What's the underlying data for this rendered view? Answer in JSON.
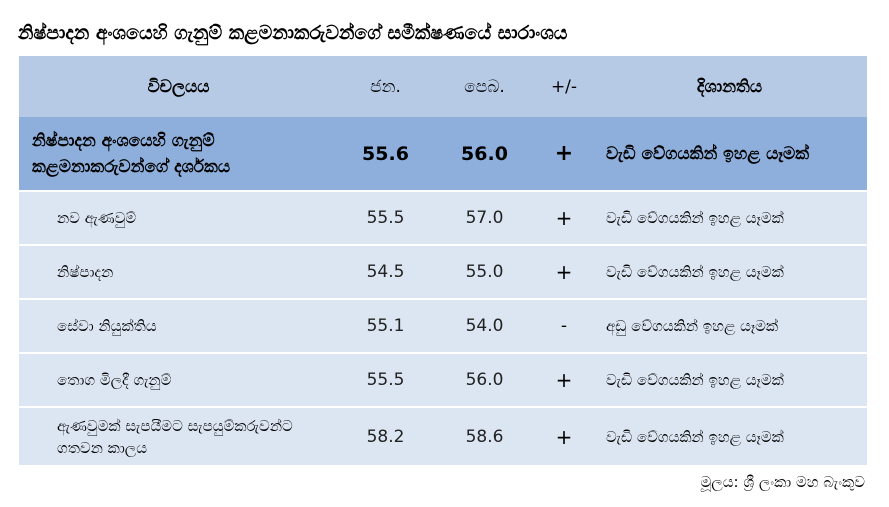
{
  "title": "නිෂ්පාදන අංශයෙහි ගැනුම් කළමනාකරුවන්ගේ සමීක්ෂණයේ සාරාංශය",
  "table": {
    "headers": {
      "category": "විචලයය",
      "jan": "ජන.",
      "feb": "පෙබ.",
      "change": "+/-",
      "direction": "දිශානතිය"
    },
    "summary_row": {
      "category": "නිෂ්පාදන අංශයෙහි ගැනුම් කළමනාකරුවන්ගේ දර්ශකය",
      "jan": "55.6",
      "feb": "56.0",
      "change": "+",
      "direction": "වැඩි වේගයකින් ඉහළ යෑමක්"
    },
    "rows": [
      {
        "category": "නව ඇණවුම්",
        "jan": "55.5",
        "feb": "57.0",
        "change": "+",
        "direction": "වැඩි වේගයකින් ඉහළ යෑමක්"
      },
      {
        "category": "නිෂ්පාදන",
        "jan": "54.5",
        "feb": "55.0",
        "change": "+",
        "direction": "වැඩි වේගයකින් ඉහළ යෑමක්"
      },
      {
        "category": "සේවා නියුක්තිය",
        "jan": "55.1",
        "feb": "54.0",
        "change": "-",
        "direction": "අඩු වේගයකින් ඉහළ යෑමක්"
      },
      {
        "category": "තොග මිලදී ගැනුම්",
        "jan": "55.5",
        "feb": "56.0",
        "change": "+",
        "direction": "වැඩි වේගයකින් ඉහළ යෑමක්"
      },
      {
        "category": "ඇණවුමක් සැපයීමට සැපයුම්කරුවන්ට ගතවන කාලය",
        "jan": "58.2",
        "feb": "58.6",
        "change": "+",
        "direction": "වැඩි වේගයකින් ඉහළ යෑමක්"
      }
    ]
  },
  "source": "මූලය: ශ්‍රී ලංකා මහ බැංකුව"
}
